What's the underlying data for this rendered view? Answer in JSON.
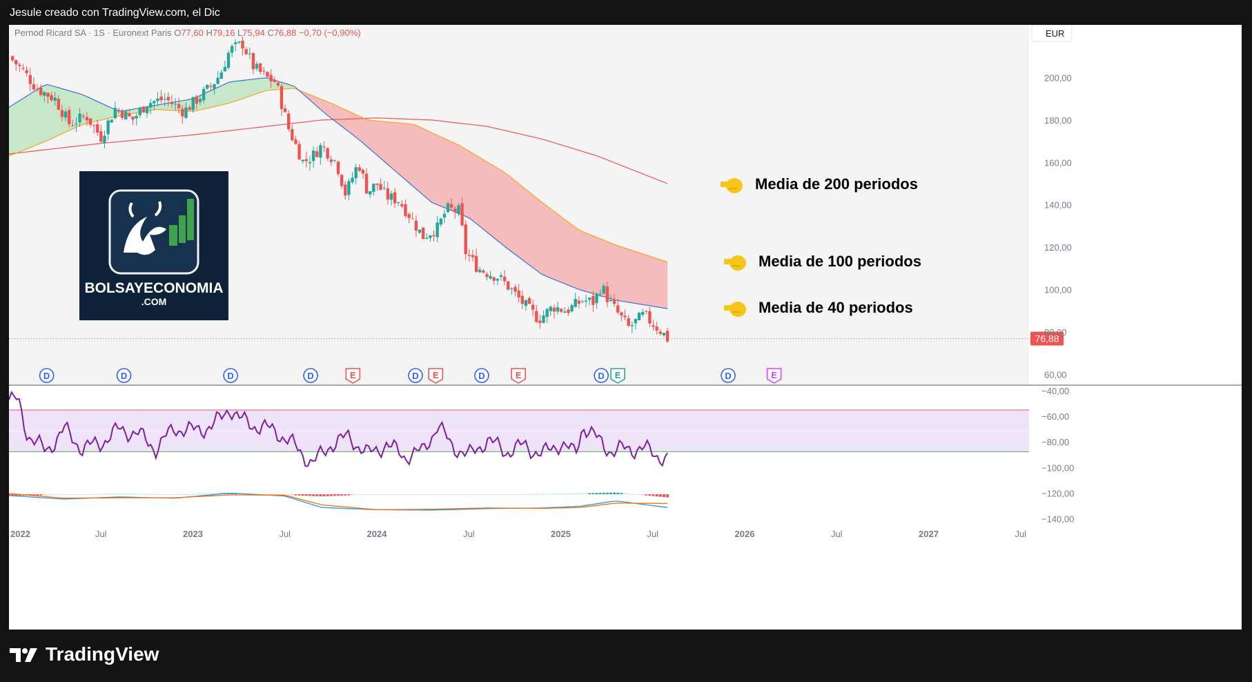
{
  "header": {
    "author_line": "Jesule creado con TradingView.com, el Dic"
  },
  "legend": {
    "symbol": "Pernod Ricard SA · 1S · Euronext Paris",
    "open_label": "O",
    "open": "77,60",
    "high_label": "H",
    "high": "79,16",
    "low_label": "L",
    "low": "75,94",
    "close_label": "C",
    "close": "76,88",
    "change": "−0,70 (−0,90%)"
  },
  "currency": "EUR",
  "last_price": "76,88",
  "annotations": {
    "ma200": "Media de 200 periodos",
    "ma100": "Media de 100 periodos",
    "ma40": "Media de 40 periodos"
  },
  "brand": {
    "line1": "BOLSAYECONOMIA",
    "line2": ".COM"
  },
  "footer": {
    "brand": "TradingView"
  },
  "indicator_dots": "···",
  "colors": {
    "up": "#26a69a",
    "down": "#ef5350",
    "ma40": "#3b6fe0",
    "ma100": "#f5a623",
    "ma200": "#f0544f",
    "rsi": "#7b1fa2",
    "macd": "#2196f3",
    "signal": "#ff6d00",
    "bull_fill": "#b7e3b9",
    "bear_fill": "#f4a9a8"
  },
  "event_markers": [
    {
      "t": 0.205,
      "label": "D",
      "type": "dividend"
    },
    {
      "t": 0.625,
      "label": "D",
      "type": "dividend"
    },
    {
      "t": 1.205,
      "label": "D",
      "type": "dividend"
    },
    {
      "t": 1.64,
      "label": "D",
      "type": "dividend"
    },
    {
      "t": 1.87,
      "label": "E",
      "type": "earnings"
    },
    {
      "t": 2.21,
      "label": "D",
      "type": "dividend"
    },
    {
      "t": 2.32,
      "label": "E",
      "type": "earnings"
    },
    {
      "t": 2.57,
      "label": "D",
      "type": "dividend"
    },
    {
      "t": 2.77,
      "label": "E",
      "type": "earnings"
    },
    {
      "t": 3.22,
      "label": "D",
      "type": "dividend"
    },
    {
      "t": 3.31,
      "label": "E",
      "type": "earnings-future"
    },
    {
      "t": 3.91,
      "label": "D",
      "type": "dividend"
    },
    {
      "t": 4.16,
      "label": "E",
      "type": "earnings-next"
    }
  ],
  "chart_data": [
    {
      "type": "candlestick",
      "title": "Pernod Ricard SA · 1S · Euronext Paris",
      "x_axis": {
        "ticks": [
          "2022",
          "Jul",
          "2023",
          "Jul",
          "2024",
          "Jul",
          "2025",
          "Jul",
          "2026",
          "Jul",
          "2027",
          "Jul"
        ]
      },
      "y_axis": {
        "ticks": [
          "200,00",
          "180,00",
          "160,00",
          "140,00",
          "120,00",
          "100,00",
          "80,00",
          "60,00"
        ],
        "ylim": [
          58,
          225
        ]
      },
      "price_path": [
        [
          0.0,
          210
        ],
        [
          0.08,
          203
        ],
        [
          0.15,
          195
        ],
        [
          0.25,
          190
        ],
        [
          0.33,
          178
        ],
        [
          0.42,
          182
        ],
        [
          0.5,
          172
        ],
        [
          0.58,
          186
        ],
        [
          0.67,
          180
        ],
        [
          0.75,
          188
        ],
        [
          0.85,
          190
        ],
        [
          0.95,
          184
        ],
        [
          1.0,
          188
        ],
        [
          1.1,
          196
        ],
        [
          1.15,
          202
        ],
        [
          1.2,
          213
        ],
        [
          1.27,
          216
        ],
        [
          1.33,
          205
        ],
        [
          1.4,
          200
        ],
        [
          1.45,
          198
        ],
        [
          1.52,
          176
        ],
        [
          1.6,
          160
        ],
        [
          1.65,
          163
        ],
        [
          1.7,
          168
        ],
        [
          1.78,
          160
        ],
        [
          1.83,
          145
        ],
        [
          1.9,
          160
        ],
        [
          1.95,
          146
        ],
        [
          2.0,
          150
        ],
        [
          2.05,
          144
        ],
        [
          2.12,
          142
        ],
        [
          2.17,
          136
        ],
        [
          2.25,
          125
        ],
        [
          2.33,
          129
        ],
        [
          2.38,
          138
        ],
        [
          2.45,
          137
        ],
        [
          2.48,
          118
        ],
        [
          2.55,
          110
        ],
        [
          2.6,
          108
        ],
        [
          2.66,
          106
        ],
        [
          2.72,
          101
        ],
        [
          2.8,
          93
        ],
        [
          2.88,
          86
        ],
        [
          2.96,
          92
        ],
        [
          3.03,
          90
        ],
        [
          3.12,
          95
        ],
        [
          3.18,
          94
        ],
        [
          3.22,
          102
        ],
        [
          3.26,
          95
        ],
        [
          3.3,
          90
        ],
        [
          3.37,
          82
        ],
        [
          3.45,
          88
        ],
        [
          3.55,
          80
        ],
        [
          3.58,
          76.88
        ]
      ],
      "ma40_path": [
        [
          0.0,
          186
        ],
        [
          0.2,
          197
        ],
        [
          0.4,
          192
        ],
        [
          0.6,
          184
        ],
        [
          0.8,
          187
        ],
        [
          1.0,
          190
        ],
        [
          1.2,
          198
        ],
        [
          1.4,
          200
        ],
        [
          1.55,
          196
        ],
        [
          1.72,
          183
        ],
        [
          1.9,
          171
        ],
        [
          2.1,
          156
        ],
        [
          2.3,
          141
        ],
        [
          2.5,
          134
        ],
        [
          2.7,
          120
        ],
        [
          2.9,
          107
        ],
        [
          3.1,
          100
        ],
        [
          3.3,
          95
        ],
        [
          3.58,
          91
        ]
      ],
      "ma100_path": [
        [
          0.0,
          163
        ],
        [
          0.2,
          170
        ],
        [
          0.4,
          178
        ],
        [
          0.6,
          182
        ],
        [
          0.8,
          185
        ],
        [
          1.0,
          184
        ],
        [
          1.2,
          188
        ],
        [
          1.4,
          194
        ],
        [
          1.55,
          195
        ],
        [
          1.75,
          188
        ],
        [
          1.95,
          180
        ],
        [
          2.2,
          178
        ],
        [
          2.45,
          168
        ],
        [
          2.7,
          155
        ],
        [
          2.9,
          141
        ],
        [
          3.1,
          128
        ],
        [
          3.3,
          121
        ],
        [
          3.58,
          113
        ]
      ],
      "ma200_path": [
        [
          0.0,
          164
        ],
        [
          0.5,
          169
        ],
        [
          1.0,
          173
        ],
        [
          1.5,
          178
        ],
        [
          1.7,
          180
        ],
        [
          2.0,
          181
        ],
        [
          2.3,
          180
        ],
        [
          2.6,
          177
        ],
        [
          2.9,
          171
        ],
        [
          3.2,
          163
        ],
        [
          3.58,
          150
        ]
      ],
      "last": 76.88,
      "series": [
        {
          "name": "Media de 40 periodos"
        },
        {
          "name": "Media de 100 periodos"
        },
        {
          "name": "Media de 200 periodos"
        }
      ]
    },
    {
      "type": "line",
      "y_axis": {
        "ticks": [
          "−40,00",
          "−60,00",
          "−80,00",
          "−100,00",
          "−120,00",
          "−140,00"
        ]
      },
      "rsi_path": [
        [
          0.0,
          65
        ],
        [
          0.05,
          64
        ],
        [
          0.1,
          42
        ],
        [
          0.2,
          30
        ],
        [
          0.3,
          45
        ],
        [
          0.4,
          32
        ],
        [
          0.5,
          36
        ],
        [
          0.6,
          45
        ],
        [
          0.7,
          42
        ],
        [
          0.8,
          32
        ],
        [
          0.9,
          46
        ],
        [
          1.0,
          44
        ],
        [
          1.1,
          47
        ],
        [
          1.15,
          52
        ],
        [
          1.2,
          60
        ],
        [
          1.25,
          52
        ],
        [
          1.35,
          47
        ],
        [
          1.45,
          44
        ],
        [
          1.55,
          34
        ],
        [
          1.65,
          22
        ],
        [
          1.7,
          28
        ],
        [
          1.75,
          35
        ],
        [
          1.85,
          40
        ],
        [
          1.95,
          28
        ],
        [
          2.05,
          35
        ],
        [
          2.15,
          27
        ],
        [
          2.25,
          30
        ],
        [
          2.33,
          48
        ],
        [
          2.4,
          35
        ],
        [
          2.5,
          27
        ],
        [
          2.6,
          38
        ],
        [
          2.7,
          30
        ],
        [
          2.8,
          34
        ],
        [
          2.9,
          28
        ],
        [
          3.0,
          36
        ],
        [
          3.08,
          28
        ],
        [
          3.12,
          48
        ],
        [
          3.2,
          38
        ],
        [
          3.28,
          30
        ],
        [
          3.35,
          32
        ],
        [
          3.45,
          32
        ],
        [
          3.52,
          28
        ],
        [
          3.58,
          25
        ]
      ]
    },
    {
      "type": "area",
      "macd_path": [
        [
          0.0,
          -6
        ],
        [
          0.3,
          -22
        ],
        [
          0.6,
          -12
        ],
        [
          0.9,
          -18
        ],
        [
          1.2,
          5
        ],
        [
          1.5,
          -8
        ],
        [
          1.7,
          -60
        ],
        [
          2.0,
          -70
        ],
        [
          2.3,
          -72
        ],
        [
          2.6,
          -65
        ],
        [
          2.9,
          -62
        ],
        [
          3.1,
          -55
        ],
        [
          3.3,
          -30
        ],
        [
          3.58,
          -60
        ]
      ],
      "signal_path": [
        [
          0.0,
          3
        ],
        [
          0.3,
          -18
        ],
        [
          0.6,
          -16
        ],
        [
          0.9,
          -16
        ],
        [
          1.2,
          -3
        ],
        [
          1.5,
          -4
        ],
        [
          1.7,
          -48
        ],
        [
          2.0,
          -70
        ],
        [
          2.3,
          -68
        ],
        [
          2.6,
          -62
        ],
        [
          2.9,
          -64
        ],
        [
          3.1,
          -60
        ],
        [
          3.3,
          -40
        ],
        [
          3.58,
          -42
        ]
      ]
    }
  ]
}
